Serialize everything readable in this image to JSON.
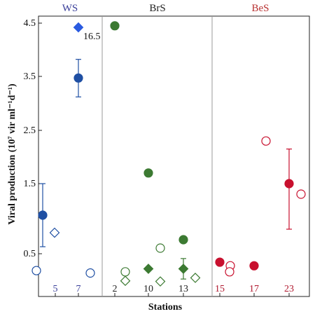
{
  "chart_data": {
    "type": "scatter",
    "ylabel": "Viral production (10⁷ vir ml⁻¹d⁻¹)",
    "xlabel": "Stations",
    "ylim": [
      0,
      4.5
    ],
    "y_ticks": [
      "0.5",
      "1.5",
      "2.5",
      "3.5",
      "4.5"
    ],
    "grid": false,
    "regions": [
      {
        "label": "WS",
        "color": "#3a3f9a",
        "stations": [
          "5",
          "7"
        ]
      },
      {
        "label": "BrS",
        "color": "#222222",
        "stations": [
          "2",
          "10",
          "13"
        ]
      },
      {
        "label": "BeS",
        "color": "#b83232",
        "stations": [
          "15",
          "17",
          "23"
        ]
      }
    ],
    "stations": [
      {
        "label": "5",
        "color": "#3a3f9a"
      },
      {
        "label": "7",
        "color": "#3a3f9a"
      },
      {
        "label": "2",
        "color": "#222222"
      },
      {
        "label": "10",
        "color": "#222222"
      },
      {
        "label": "13",
        "color": "#222222"
      },
      {
        "label": "15",
        "color": "#b0182e"
      },
      {
        "label": "17",
        "color": "#b0182e"
      },
      {
        "label": "23",
        "color": "#b0182e"
      }
    ],
    "points": [
      {
        "station": "5",
        "shape": "circle",
        "filled": true,
        "color": "#1f4fa3",
        "y": 1.05,
        "err": 0.45
      },
      {
        "station": "5",
        "shape": "diamond",
        "filled": false,
        "color": "#1f4fa3",
        "y": 0.8
      },
      {
        "station": "5",
        "shape": "circle",
        "filled": false,
        "color": "#1f4fa3",
        "y": 0.22
      },
      {
        "station": "7",
        "shape": "circle",
        "filled": true,
        "color": "#1f4fa3",
        "y": 3.47,
        "err": 0.35
      },
      {
        "station": "7",
        "shape": "diamond",
        "filled": true,
        "color": "#2a5be0",
        "y": 4.42
      },
      {
        "station": "7",
        "shape": "circle",
        "filled": false,
        "color": "#1f4fa3",
        "y": 0.18
      },
      {
        "station": "2",
        "shape": "circle",
        "filled": true,
        "color": "#3c7a32",
        "y": 4.45
      },
      {
        "station": "2",
        "shape": "circle",
        "filled": false,
        "color": "#3c7a32",
        "y": 0.2
      },
      {
        "station": "2",
        "shape": "diamond",
        "filled": false,
        "color": "#3c7a32",
        "y": 0.05
      },
      {
        "station": "10",
        "shape": "circle",
        "filled": true,
        "color": "#3c7a32",
        "y": 1.7
      },
      {
        "station": "10",
        "shape": "diamond",
        "filled": true,
        "color": "#3c7a32",
        "y": 0.25
      },
      {
        "station": "10",
        "shape": "circle",
        "filled": false,
        "color": "#3c7a32",
        "y": 0.58
      },
      {
        "station": "10",
        "shape": "diamond",
        "filled": false,
        "color": "#3c7a32",
        "y": 0.04
      },
      {
        "station": "13",
        "shape": "circle",
        "filled": true,
        "color": "#3c7a32",
        "y": 0.7
      },
      {
        "station": "13",
        "shape": "diamond",
        "filled": true,
        "color": "#3c7a32",
        "y": 0.25,
        "err": 0.17
      },
      {
        "station": "13",
        "shape": "diamond",
        "filled": false,
        "color": "#3c7a32",
        "y": 0.1
      },
      {
        "station": "15",
        "shape": "circle",
        "filled": true,
        "color": "#c8102e",
        "y": 0.36
      },
      {
        "station": "15",
        "shape": "circle",
        "filled": false,
        "color": "#c8102e",
        "y": 0.3
      },
      {
        "station": "15",
        "shape": "circle",
        "filled": false,
        "color": "#c8102e",
        "y": 0.2
      },
      {
        "station": "17",
        "shape": "circle",
        "filled": true,
        "color": "#c8102e",
        "y": 0.3
      },
      {
        "station": "17",
        "shape": "circle",
        "filled": false,
        "color": "#c8102e",
        "y": 2.3
      },
      {
        "station": "23",
        "shape": "circle",
        "filled": true,
        "color": "#c8102e",
        "y": 1.5,
        "err": 0.65
      },
      {
        "station": "23",
        "shape": "circle",
        "filled": false,
        "color": "#c8102e",
        "y": 1.35
      }
    ],
    "annotations": [
      {
        "text": "16.5",
        "station": "7",
        "y": 4.25
      }
    ]
  }
}
